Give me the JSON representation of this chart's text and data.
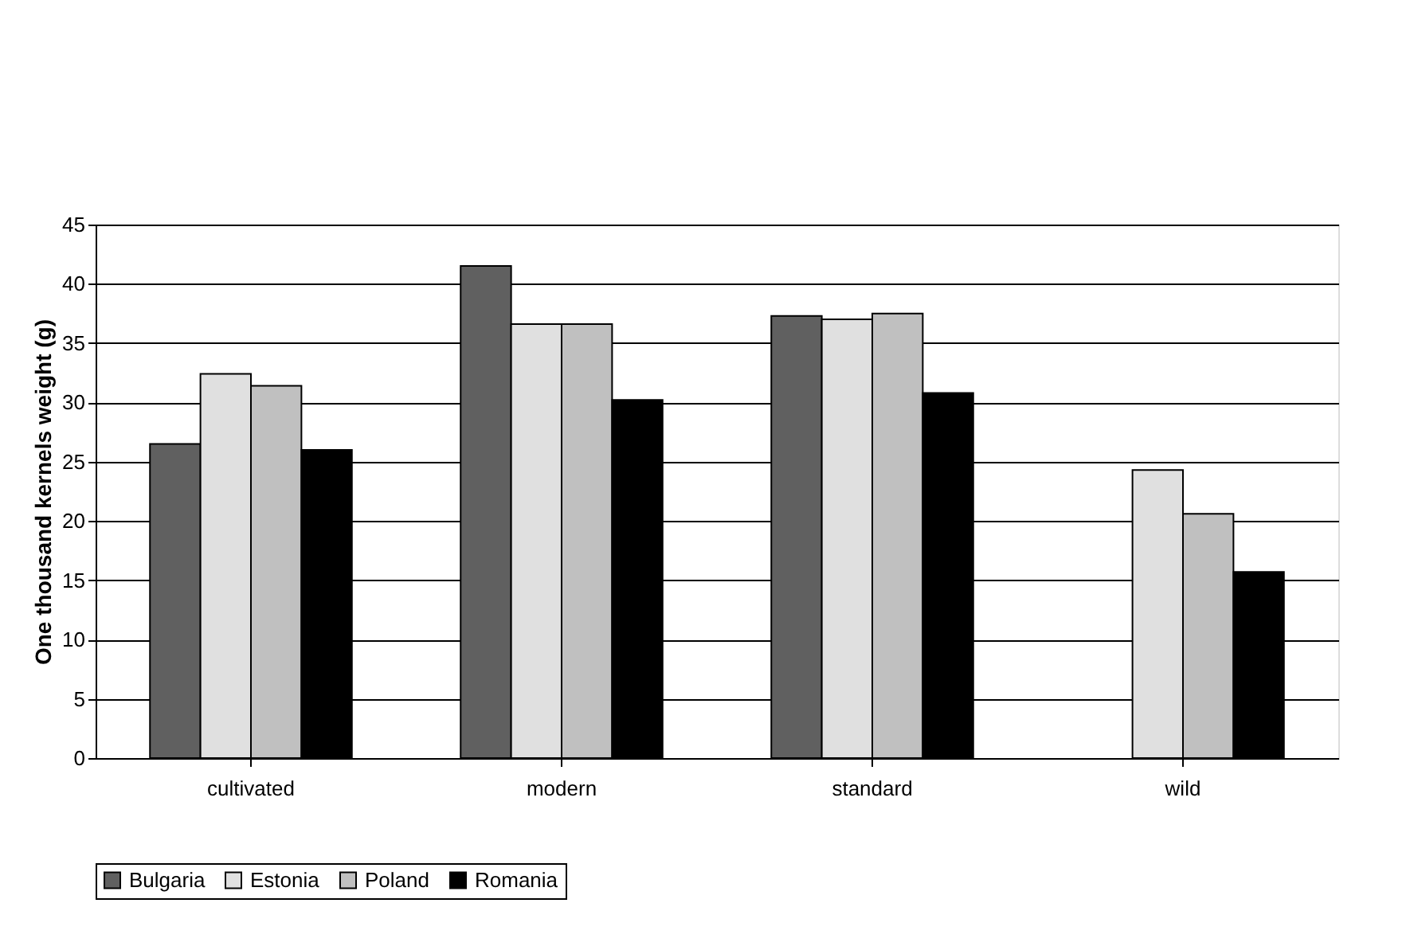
{
  "chart_data": {
    "type": "bar",
    "ylabel": "One thousand kernels weight (g)",
    "categories": [
      "cultivated",
      "modern",
      "standard",
      "wild"
    ],
    "series": [
      {
        "name": "Bulgaria",
        "color": "#606060",
        "values": [
          26.5,
          41.5,
          37.3,
          null
        ]
      },
      {
        "name": "Estonia",
        "color": "#e0e0e0",
        "values": [
          32.4,
          36.6,
          37.0,
          24.3
        ]
      },
      {
        "name": "Poland",
        "color": "#c0c0c0",
        "values": [
          31.4,
          36.6,
          37.5,
          20.6
        ]
      },
      {
        "name": "Romania",
        "color": "#000000",
        "values": [
          26.0,
          30.2,
          30.8,
          15.7
        ]
      }
    ],
    "ylim": [
      0,
      45
    ],
    "yticks": [
      0,
      5,
      10,
      15,
      20,
      25,
      30,
      35,
      40,
      45
    ],
    "grid": "y",
    "legend": "bottom"
  }
}
